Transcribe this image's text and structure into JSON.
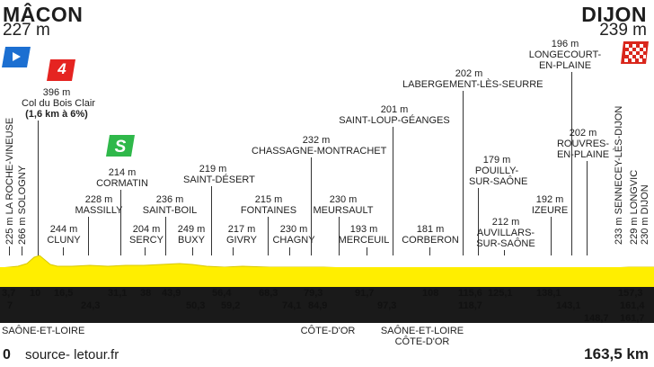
{
  "start": {
    "city": "MÂCON",
    "altitude": "227 m"
  },
  "finish": {
    "city": "DIJON",
    "altitude": "239 m"
  },
  "climbs": [
    {
      "category": "4",
      "name": "Col du Bois Clair",
      "altitude": "396 m",
      "detail": "(1,6 km à 6%)"
    }
  ],
  "sprint": {
    "altitude": "214 m",
    "name": "CORMATIN"
  },
  "points": [
    {
      "altitude": "225 m",
      "name": "LA ROCHE-VINEUSE"
    },
    {
      "altitude": "266 m",
      "name": "SOLOGNY"
    },
    {
      "altitude": "244 m",
      "name": "CLUNY"
    },
    {
      "altitude": "228 m",
      "name": "MASSILLY"
    },
    {
      "altitude": "204 m",
      "name": "SERCY"
    },
    {
      "altitude": "236 m",
      "name": "SAINT-BOIL"
    },
    {
      "altitude": "249 m",
      "name": "BUXY"
    },
    {
      "altitude": "219 m",
      "name": "SAINT-DÉSERT"
    },
    {
      "altitude": "217 m",
      "name": "GIVRY"
    },
    {
      "altitude": "215 m",
      "name": "FONTAINES"
    },
    {
      "altitude": "230 m",
      "name": "CHAGNY"
    },
    {
      "altitude": "232 m",
      "name": "CHASSAGNE-MONTRACHET"
    },
    {
      "altitude": "230 m",
      "name": "MEURSAULT"
    },
    {
      "altitude": "193 m",
      "name": "MERCEUIL"
    },
    {
      "altitude": "201 m",
      "name": "SAINT-LOUP-GÉANGES"
    },
    {
      "altitude": "181 m",
      "name": "CORBERON"
    },
    {
      "altitude": "202 m",
      "name": "LABERGEMENT-LÈS-SEURRE"
    },
    {
      "altitude": "179 m",
      "name": "POUILLY-SUR-SAÔNE"
    },
    {
      "altitude": "212 m",
      "name": "AUVILLARS-SUR-SAÔNE"
    },
    {
      "altitude": "192 m",
      "name": "IZEURE"
    },
    {
      "altitude": "196 m",
      "name": "LONGECOURT-EN-PLAINE"
    },
    {
      "altitude": "202 m",
      "name": "ROUVRES-EN-PLAINE"
    },
    {
      "altitude": "233 m",
      "name": "SENNECEY-LÈS-DIJON"
    },
    {
      "altitude": "229 m",
      "name": "LONGVIC"
    },
    {
      "altitude": "230 m",
      "name": "DIJON"
    }
  ],
  "km_marks": [
    "3,7",
    "7",
    "10",
    "16,5",
    "24,3",
    "31,1",
    "38",
    "43,9",
    "50,3",
    "56,4",
    "59,2",
    "68,3",
    "74,1",
    "79,3",
    "84,9",
    "91,7",
    "97,3",
    "108",
    "115,6",
    "118,7",
    "125,1",
    "138,1",
    "143,1",
    "148,7",
    "157,3",
    "161,4",
    "161,7"
  ],
  "departments": [
    "SAÔNE-ET-LOIRE",
    "CÔTE-D'OR",
    "SAÔNE-ET-LOIRE",
    "CÔTE-D'OR"
  ],
  "footer": {
    "km_start": "0",
    "source": "source- letour.fr",
    "km_end": "163,5 km"
  },
  "colors": {
    "profile": "#ffee00",
    "band": "#1a1a1a",
    "sprint": "#2fb84a",
    "climb": "#e52421",
    "start_flag": "#1c6fd1"
  }
}
